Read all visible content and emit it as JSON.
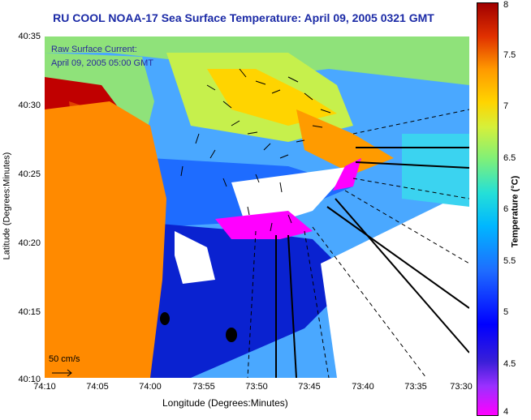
{
  "title": "RU COOL  NOAA-17  Sea Surface Temperature:  April 09, 2005 0321 GMT",
  "current_label": {
    "line1": "Raw Surface Current:",
    "line2": "April 09, 2005 05:00 GMT"
  },
  "scale_label": "50 cm/s",
  "axes": {
    "xlabel": "Longitude (Degrees:Minutes)",
    "ylabel": "Latitude (Degrees:Minutes)",
    "xticks": [
      "74:10",
      "74:05",
      "74:00",
      "73:55",
      "73:50",
      "73:45",
      "73:40",
      "73:35",
      "73:30"
    ],
    "yticks": [
      "40:35",
      "40:30",
      "40:25",
      "40:20",
      "40:15",
      "40:10"
    ]
  },
  "colorbar": {
    "title": "Temperature (°C)",
    "ticks": [
      "8",
      "7.5",
      "7",
      "6.5",
      "6",
      "5.5",
      "5",
      "4.5",
      "4"
    ]
  },
  "colors": {
    "land": "#ff8a00",
    "title": "#1b2aa6"
  }
}
